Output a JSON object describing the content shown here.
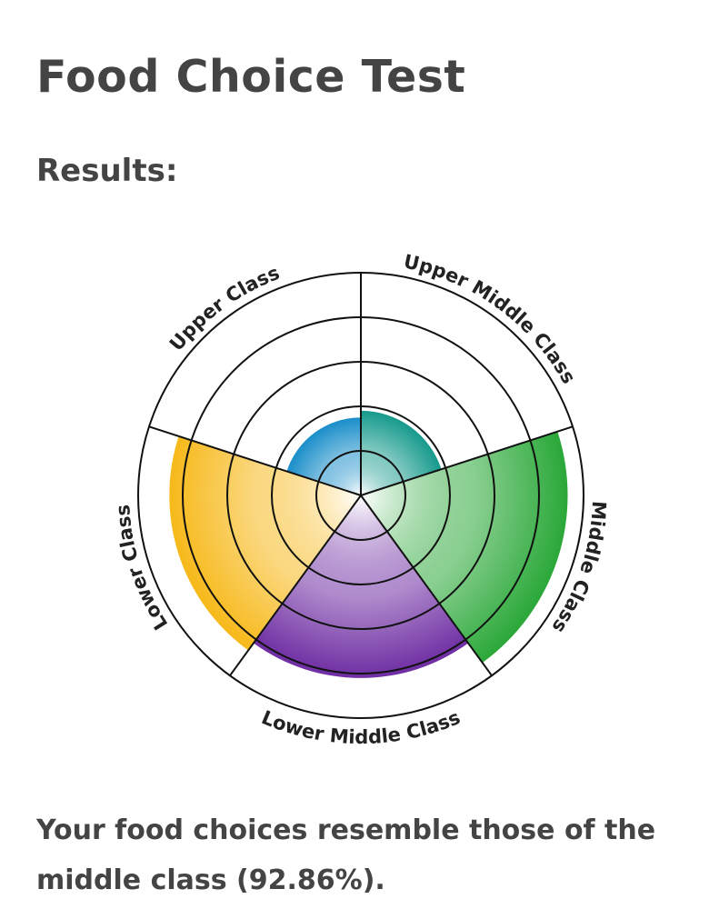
{
  "page": {
    "title": "Food Choice Test",
    "subtitle": "Results:",
    "result_text": "Your food choices resemble those of the middle class (92.86%)."
  },
  "chart_data": {
    "type": "polar-area",
    "title": "",
    "rmax": 100,
    "rings": 5,
    "grid": true,
    "categories": [
      "Upper Middle Class",
      "Middle Class",
      "Lower Middle Class",
      "Lower Class",
      "Upper Class"
    ],
    "values": [
      38,
      92.86,
      82,
      86,
      35
    ],
    "colors": [
      "#169a8c",
      "#2aa838",
      "#6f2ea3",
      "#f7b91a",
      "#1a8ec9"
    ]
  }
}
